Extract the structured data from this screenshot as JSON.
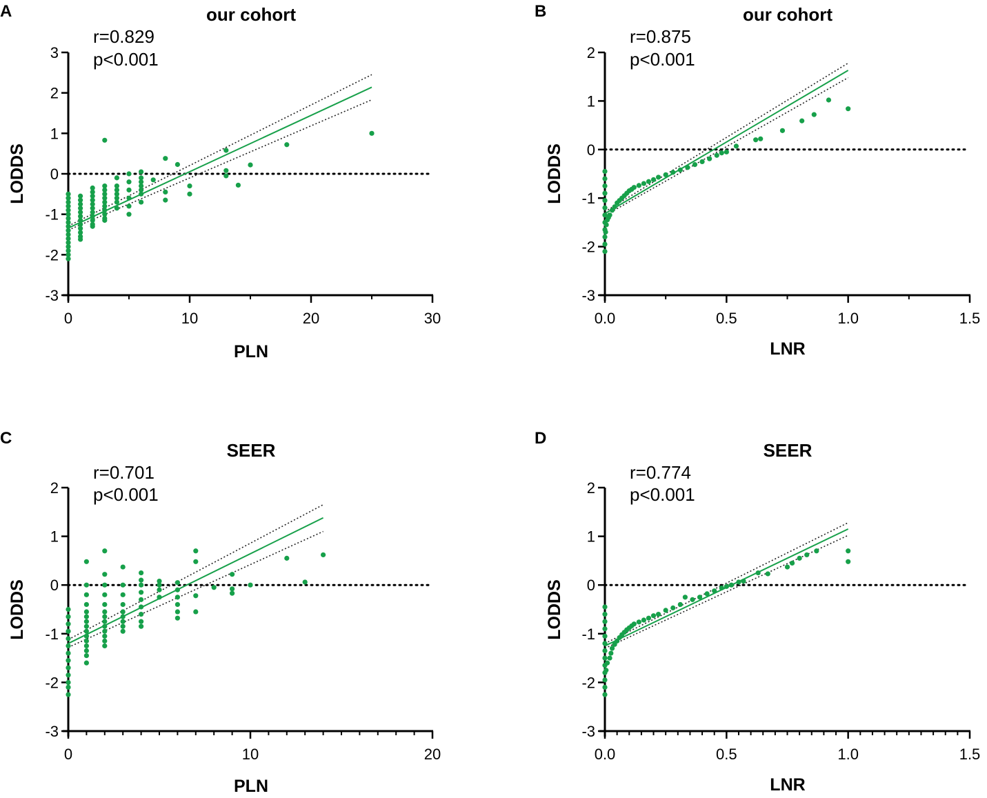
{
  "figure": {
    "colors": {
      "points": "#17a04a",
      "fit": "#17a04a",
      "ci": "#222222",
      "ref": "#000000",
      "axis": "#000000"
    }
  },
  "chart_data": [
    {
      "type": "scatter",
      "letter": "A",
      "title": "our cohort",
      "annotation": {
        "r": "r=0.829",
        "p": "p<0.001"
      },
      "xlabel": "PLN",
      "ylabel": "LODDS",
      "xlim": [
        0,
        30
      ],
      "ylim": [
        -3,
        3
      ],
      "xticks": [
        0,
        10,
        20,
        30
      ],
      "xtick_labels": [
        "0",
        "10",
        "20",
        "30"
      ],
      "yticks": [
        -3,
        -2,
        -1,
        0,
        1,
        2,
        3
      ],
      "ytick_labels": [
        "-3",
        "-2",
        "-1",
        "0",
        "1",
        "2",
        "3"
      ],
      "x_minor_ticks": [
        5,
        15,
        25
      ],
      "y_minor_ticks": [],
      "reference_line_y": 0,
      "fit_x_range": [
        0,
        25
      ],
      "fit_line": [
        [
          0,
          -1.34
        ],
        [
          25,
          2.14
        ]
      ],
      "ci_upper": [
        [
          0,
          -1.29
        ],
        [
          25,
          2.45
        ]
      ],
      "ci_lower": [
        [
          0,
          -1.39
        ],
        [
          25,
          1.83
        ]
      ],
      "points": [
        [
          0,
          -0.5
        ],
        [
          0,
          -0.6
        ],
        [
          0,
          -0.7
        ],
        [
          0,
          -0.8
        ],
        [
          0,
          -0.9
        ],
        [
          0,
          -1.0
        ],
        [
          0,
          -1.1
        ],
        [
          0,
          -1.2
        ],
        [
          0,
          -1.3
        ],
        [
          0,
          -1.4
        ],
        [
          0,
          -1.5
        ],
        [
          0,
          -1.6
        ],
        [
          0,
          -1.7
        ],
        [
          0,
          -1.8
        ],
        [
          0,
          -1.9
        ],
        [
          0,
          -2.0
        ],
        [
          0,
          -2.1
        ],
        [
          1,
          -0.55
        ],
        [
          1,
          -0.65
        ],
        [
          1,
          -0.75
        ],
        [
          1,
          -0.85
        ],
        [
          1,
          -0.95
        ],
        [
          1,
          -1.05
        ],
        [
          1,
          -1.15
        ],
        [
          1,
          -1.25
        ],
        [
          1,
          -1.35
        ],
        [
          1,
          -1.45
        ],
        [
          1,
          -1.55
        ],
        [
          1,
          -1.62
        ],
        [
          2,
          -0.35
        ],
        [
          2,
          -0.45
        ],
        [
          2,
          -0.55
        ],
        [
          2,
          -0.65
        ],
        [
          2,
          -0.75
        ],
        [
          2,
          -0.85
        ],
        [
          2,
          -0.95
        ],
        [
          2,
          -1.05
        ],
        [
          2,
          -1.15
        ],
        [
          2,
          -1.25
        ],
        [
          2,
          -1.3
        ],
        [
          3,
          0.83
        ],
        [
          3,
          -0.3
        ],
        [
          3,
          -0.4
        ],
        [
          3,
          -0.5
        ],
        [
          3,
          -0.6
        ],
        [
          3,
          -0.7
        ],
        [
          3,
          -0.8
        ],
        [
          3,
          -0.9
        ],
        [
          3,
          -1.0
        ],
        [
          3,
          -1.1
        ],
        [
          3,
          -1.15
        ],
        [
          4,
          -0.1
        ],
        [
          4,
          -0.3
        ],
        [
          4,
          -0.4
        ],
        [
          4,
          -0.5
        ],
        [
          4,
          -0.6
        ],
        [
          4,
          -0.7
        ],
        [
          4,
          -0.85
        ],
        [
          5,
          0.0
        ],
        [
          5,
          -0.2
        ],
        [
          5,
          -0.4
        ],
        [
          5,
          -0.6
        ],
        [
          5,
          -0.8
        ],
        [
          5,
          -1.0
        ],
        [
          6,
          0.05
        ],
        [
          6,
          -0.1
        ],
        [
          6,
          -0.2
        ],
        [
          6,
          -0.3
        ],
        [
          6,
          -0.4
        ],
        [
          6,
          -0.5
        ],
        [
          6,
          -0.7
        ],
        [
          7,
          -0.15
        ],
        [
          8,
          0.38
        ],
        [
          8,
          -0.45
        ],
        [
          8,
          -0.65
        ],
        [
          9,
          0.23
        ],
        [
          10,
          -0.3
        ],
        [
          10,
          -0.5
        ],
        [
          13,
          0.58
        ],
        [
          13,
          0.08
        ],
        [
          13,
          -0.05
        ],
        [
          14,
          -0.28
        ],
        [
          15,
          0.22
        ],
        [
          18,
          0.72
        ],
        [
          25,
          1.0
        ]
      ]
    },
    {
      "type": "scatter",
      "letter": "B",
      "title": "our cohort",
      "annotation": {
        "r": "r=0.875",
        "p": "p<0.001"
      },
      "xlabel": "LNR",
      "ylabel": "LODDS",
      "xlim": [
        0,
        1.5
      ],
      "ylim": [
        -3,
        2
      ],
      "xticks": [
        0,
        0.5,
        1.0,
        1.5
      ],
      "xtick_labels": [
        "0.0",
        "0.5",
        "1.0",
        "1.5"
      ],
      "yticks": [
        -3,
        -2,
        -1,
        0,
        1,
        2
      ],
      "ytick_labels": [
        "-3",
        "-2",
        "-1",
        "0",
        "1",
        "2"
      ],
      "x_minor_ticks": [
        0.25,
        0.75,
        1.25
      ],
      "y_minor_ticks": [],
      "reference_line_y": 0,
      "fit_x_range": [
        0,
        1
      ],
      "fit_line": [
        [
          0,
          -1.32
        ],
        [
          1,
          1.63
        ]
      ],
      "ci_upper": [
        [
          0,
          -1.28
        ],
        [
          1,
          1.78
        ]
      ],
      "ci_lower": [
        [
          0,
          -1.36
        ],
        [
          1,
          1.48
        ]
      ],
      "points": [
        [
          0,
          -0.45
        ],
        [
          0,
          -0.6
        ],
        [
          0,
          -0.75
        ],
        [
          0,
          -0.9
        ],
        [
          0,
          -1.05
        ],
        [
          0,
          -1.2
        ],
        [
          0,
          -1.35
        ],
        [
          0,
          -1.5
        ],
        [
          0,
          -1.65
        ],
        [
          0,
          -1.8
        ],
        [
          0,
          -1.95
        ],
        [
          0,
          -2.1
        ],
        [
          0.003,
          -1.7
        ],
        [
          0.006,
          -1.55
        ],
        [
          0.01,
          -1.45
        ],
        [
          0.015,
          -1.4
        ],
        [
          0.02,
          -1.35
        ],
        [
          0.03,
          -1.25
        ],
        [
          0.04,
          -1.18
        ],
        [
          0.05,
          -1.1
        ],
        [
          0.06,
          -1.05
        ],
        [
          0.07,
          -1.0
        ],
        [
          0.08,
          -0.95
        ],
        [
          0.09,
          -0.9
        ],
        [
          0.1,
          -0.85
        ],
        [
          0.11,
          -0.82
        ],
        [
          0.12,
          -0.78
        ],
        [
          0.14,
          -0.74
        ],
        [
          0.16,
          -0.7
        ],
        [
          0.18,
          -0.66
        ],
        [
          0.2,
          -0.62
        ],
        [
          0.22,
          -0.57
        ],
        [
          0.25,
          -0.52
        ],
        [
          0.28,
          -0.47
        ],
        [
          0.31,
          -0.42
        ],
        [
          0.34,
          -0.37
        ],
        [
          0.37,
          -0.31
        ],
        [
          0.4,
          -0.25
        ],
        [
          0.43,
          -0.19
        ],
        [
          0.46,
          -0.12
        ],
        [
          0.48,
          -0.07
        ],
        [
          0.5,
          -0.05
        ],
        [
          0.54,
          0.07
        ],
        [
          0.62,
          0.2
        ],
        [
          0.64,
          0.22
        ],
        [
          0.73,
          0.39
        ],
        [
          0.81,
          0.59
        ],
        [
          0.86,
          0.72
        ],
        [
          0.92,
          1.02
        ],
        [
          1.0,
          0.84
        ]
      ]
    },
    {
      "type": "scatter",
      "letter": "C",
      "title": "SEER",
      "annotation": {
        "r": "r=0.701",
        "p": "p<0.001"
      },
      "xlabel": "PLN",
      "ylabel": "LODDS",
      "xlim": [
        0,
        20
      ],
      "ylim": [
        -3,
        2
      ],
      "xticks": [
        0,
        10,
        20
      ],
      "xtick_labels": [
        "0",
        "10",
        "20"
      ],
      "yticks": [
        -3,
        -2,
        -1,
        0,
        1,
        2
      ],
      "ytick_labels": [
        "-3",
        "-2",
        "-1",
        "0",
        "1",
        "2"
      ],
      "x_minor_ticks": [
        1,
        2,
        3,
        4,
        5,
        6,
        7,
        8,
        9,
        11,
        12,
        13,
        14,
        15,
        16,
        17,
        18,
        19
      ],
      "y_minor_ticks": [],
      "reference_line_y": 0,
      "fit_x_range": [
        0,
        14
      ],
      "fit_line": [
        [
          0,
          -1.2
        ],
        [
          14,
          1.38
        ]
      ],
      "ci_upper": [
        [
          0,
          -1.12
        ],
        [
          14,
          1.65
        ]
      ],
      "ci_lower": [
        [
          0,
          -1.28
        ],
        [
          14,
          1.1
        ]
      ],
      "points": [
        [
          0,
          -0.5
        ],
        [
          0,
          -0.65
        ],
        [
          0,
          -0.8
        ],
        [
          0,
          -0.95
        ],
        [
          0,
          -1.1
        ],
        [
          0,
          -1.25
        ],
        [
          0,
          -1.4
        ],
        [
          0,
          -1.55
        ],
        [
          0,
          -1.7
        ],
        [
          0,
          -1.85
        ],
        [
          0,
          -2.0
        ],
        [
          0,
          -2.1
        ],
        [
          0,
          -2.25
        ],
        [
          1,
          0.48
        ],
        [
          1,
          0.0
        ],
        [
          1,
          -0.2
        ],
        [
          1,
          -0.4
        ],
        [
          1,
          -0.55
        ],
        [
          1,
          -0.65
        ],
        [
          1,
          -0.75
        ],
        [
          1,
          -0.85
        ],
        [
          1,
          -0.95
        ],
        [
          1,
          -1.05
        ],
        [
          1,
          -1.15
        ],
        [
          1,
          -1.25
        ],
        [
          1,
          -1.35
        ],
        [
          1,
          -1.45
        ],
        [
          1,
          -1.6
        ],
        [
          2,
          0.7
        ],
        [
          2,
          0.22
        ],
        [
          2,
          0.0
        ],
        [
          2,
          -0.2
        ],
        [
          2,
          -0.4
        ],
        [
          2,
          -0.55
        ],
        [
          2,
          -0.65
        ],
        [
          2,
          -0.75
        ],
        [
          2,
          -0.85
        ],
        [
          2,
          -0.95
        ],
        [
          2,
          -1.05
        ],
        [
          2,
          -1.15
        ],
        [
          2,
          -1.25
        ],
        [
          3,
          0.37
        ],
        [
          3,
          0.0
        ],
        [
          3,
          -0.2
        ],
        [
          3,
          -0.4
        ],
        [
          3,
          -0.55
        ],
        [
          3,
          -0.65
        ],
        [
          3,
          -0.75
        ],
        [
          3,
          -0.85
        ],
        [
          3,
          -0.95
        ],
        [
          4,
          0.25
        ],
        [
          4,
          0.1
        ],
        [
          4,
          0.0
        ],
        [
          4,
          -0.15
        ],
        [
          4,
          -0.3
        ],
        [
          4,
          -0.45
        ],
        [
          4,
          -0.6
        ],
        [
          4,
          -0.75
        ],
        [
          4,
          -0.85
        ],
        [
          5,
          0.08
        ],
        [
          5,
          0.0
        ],
        [
          5,
          -0.1
        ],
        [
          5,
          -0.25
        ],
        [
          6,
          0.05
        ],
        [
          6,
          -0.1
        ],
        [
          6,
          -0.25
        ],
        [
          6,
          -0.4
        ],
        [
          6,
          -0.55
        ],
        [
          6,
          -0.68
        ],
        [
          7,
          0.7
        ],
        [
          7,
          0.48
        ],
        [
          7,
          -0.22
        ],
        [
          7,
          -0.55
        ],
        [
          8,
          -0.05
        ],
        [
          9,
          0.22
        ],
        [
          9,
          -0.08
        ],
        [
          9,
          -0.17
        ],
        [
          10,
          0.0
        ],
        [
          12,
          0.55
        ],
        [
          13,
          0.06
        ],
        [
          14,
          0.62
        ]
      ]
    },
    {
      "type": "scatter",
      "letter": "D",
      "title": "SEER",
      "annotation": {
        "r": "r=0.774",
        "p": "p<0.001"
      },
      "xlabel": "LNR",
      "ylabel": "LODDS",
      "xlim": [
        0,
        1.5
      ],
      "ylim": [
        -3,
        2
      ],
      "xticks": [
        0,
        0.5,
        1.0,
        1.5
      ],
      "xtick_labels": [
        "0.0",
        "0.5",
        "1.0",
        "1.5"
      ],
      "yticks": [
        -3,
        -2,
        -1,
        0,
        1,
        2
      ],
      "ytick_labels": [
        "-3",
        "-2",
        "-1",
        "0",
        "1",
        "2"
      ],
      "x_minor_ticks": [
        0.05,
        0.1,
        0.15,
        0.2,
        0.25,
        0.3,
        0.35,
        0.4,
        0.45,
        0.55,
        0.6,
        0.65,
        0.7,
        0.75,
        0.8,
        0.85,
        0.9,
        0.95,
        1.05,
        1.1,
        1.15,
        1.2,
        1.25,
        1.3,
        1.35,
        1.4,
        1.45
      ],
      "y_minor_ticks": [],
      "reference_line_y": 0,
      "fit_x_range": [
        0,
        1
      ],
      "fit_line": [
        [
          0,
          -1.25
        ],
        [
          1,
          1.15
        ]
      ],
      "ci_upper": [
        [
          0,
          -1.2
        ],
        [
          1,
          1.28
        ]
      ],
      "ci_lower": [
        [
          0,
          -1.3
        ],
        [
          1,
          1.02
        ]
      ],
      "points": [
        [
          0,
          -0.45
        ],
        [
          0,
          -0.6
        ],
        [
          0,
          -0.75
        ],
        [
          0,
          -0.9
        ],
        [
          0,
          -1.05
        ],
        [
          0,
          -1.2
        ],
        [
          0,
          -1.35
        ],
        [
          0,
          -1.5
        ],
        [
          0,
          -1.65
        ],
        [
          0,
          -1.8
        ],
        [
          0,
          -1.95
        ],
        [
          0,
          -2.1
        ],
        [
          0,
          -2.25
        ],
        [
          0.005,
          -1.75
        ],
        [
          0.01,
          -1.6
        ],
        [
          0.02,
          -1.5
        ],
        [
          0.025,
          -1.4
        ],
        [
          0.03,
          -1.3
        ],
        [
          0.04,
          -1.22
        ],
        [
          0.05,
          -1.15
        ],
        [
          0.06,
          -1.08
        ],
        [
          0.07,
          -1.02
        ],
        [
          0.08,
          -0.97
        ],
        [
          0.09,
          -0.92
        ],
        [
          0.1,
          -0.88
        ],
        [
          0.11,
          -0.84
        ],
        [
          0.12,
          -0.8
        ],
        [
          0.14,
          -0.76
        ],
        [
          0.16,
          -0.72
        ],
        [
          0.18,
          -0.68
        ],
        [
          0.2,
          -0.63
        ],
        [
          0.22,
          -0.6
        ],
        [
          0.25,
          -0.52
        ],
        [
          0.28,
          -0.47
        ],
        [
          0.31,
          -0.4
        ],
        [
          0.33,
          -0.25
        ],
        [
          0.36,
          -0.3
        ],
        [
          0.39,
          -0.25
        ],
        [
          0.42,
          -0.18
        ],
        [
          0.45,
          -0.12
        ],
        [
          0.48,
          -0.06
        ],
        [
          0.5,
          -0.03
        ],
        [
          0.52,
          0.0
        ],
        [
          0.55,
          0.06
        ],
        [
          0.57,
          0.08
        ],
        [
          0.63,
          0.25
        ],
        [
          0.67,
          0.23
        ],
        [
          0.75,
          0.37
        ],
        [
          0.77,
          0.45
        ],
        [
          0.8,
          0.55
        ],
        [
          0.83,
          0.62
        ],
        [
          0.87,
          0.7
        ],
        [
          1.0,
          0.7
        ],
        [
          1.0,
          0.48
        ]
      ]
    }
  ]
}
